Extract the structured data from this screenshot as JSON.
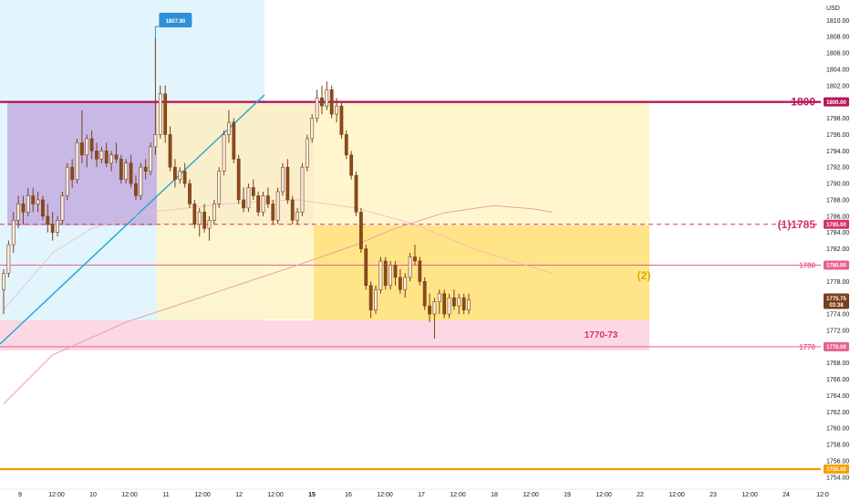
{
  "chart_data": {
    "type": "candlestick",
    "currency": "USD",
    "y_ticks": [
      1754,
      1756,
      1758,
      1760,
      1762,
      1764,
      1766,
      1768,
      1770,
      1772,
      1774,
      1776,
      1778,
      1780,
      1782,
      1784,
      1786,
      1788,
      1790,
      1792,
      1794,
      1796,
      1798,
      1800,
      1802,
      1804,
      1806,
      1808,
      1810
    ],
    "y_tick_labels": [
      "1754.00",
      "1756.00",
      "1758.00",
      "1760.00",
      "1762.00",
      "1764.00",
      "1766.00",
      "1768.00",
      "1770.00",
      "1772.00",
      "1774.00",
      "1776.00",
      "1778.00",
      "1780.00",
      "1782.00",
      "1784.00",
      "1786.00",
      "1788.00",
      "1790.00",
      "1792.00",
      "1794.00",
      "1796.00",
      "1798.00",
      "1800.00",
      "1802.00",
      "1804.00",
      "1806.00",
      "1808.00",
      "1810.00"
    ],
    "ylim": [
      1753.2,
      1811.6
    ],
    "x_ticks": [
      {
        "label": "9",
        "bold": false
      },
      {
        "label": "12:00",
        "bold": false
      },
      {
        "label": "10",
        "bold": false
      },
      {
        "label": "12:00",
        "bold": false
      },
      {
        "label": "11",
        "bold": false
      },
      {
        "label": "12:00",
        "bold": false
      },
      {
        "label": "12",
        "bold": false
      },
      {
        "label": "12:00",
        "bold": false
      },
      {
        "label": "15",
        "bold": true
      },
      {
        "label": "16",
        "bold": false
      },
      {
        "label": "12:00",
        "bold": false
      },
      {
        "label": "17",
        "bold": false
      },
      {
        "label": "12:00",
        "bold": false
      },
      {
        "label": "18",
        "bold": false
      },
      {
        "label": "12:00",
        "bold": false
      },
      {
        "label": "19",
        "bold": false
      },
      {
        "label": "12:00",
        "bold": false
      },
      {
        "label": "22",
        "bold": false
      },
      {
        "label": "12:00",
        "bold": false
      },
      {
        "label": "23",
        "bold": false
      },
      {
        "label": "12:00",
        "bold": false
      },
      {
        "label": "24",
        "bold": false
      },
      {
        "label": "12:0",
        "bold": false
      }
    ],
    "levels": [
      {
        "label": "1800",
        "price": 1800,
        "tag": "1800.00",
        "color": "#b5195c",
        "style": "solid",
        "thick": true
      },
      {
        "label": "(1)1785",
        "price": 1785,
        "tag": "1785.00",
        "color": "#d6336c",
        "style": "dashed",
        "thick": false
      },
      {
        "label": "1780",
        "price": 1780,
        "tag": "1780.00",
        "color": "#e8608c",
        "style": "solid",
        "thick": false
      },
      {
        "label": "1770",
        "price": 1770,
        "tag": "1770.00",
        "color": "#e8608c",
        "style": "solid",
        "thick": false
      },
      {
        "label": "",
        "price": 1755,
        "tag": "1755.00",
        "color": "#f59f00",
        "style": "solid",
        "thick": true
      }
    ],
    "zone_label": "1770-73",
    "target_label": "(2)",
    "high_callout": "1807.90",
    "high_price": 1807.9,
    "current_price": "1775.75",
    "countdown": "03:38",
    "candles": [
      [
        1777.0,
        1779.5,
        1774.0,
        1779.0
      ],
      [
        1779.0,
        1783.0,
        1778.5,
        1782.5
      ],
      [
        1782.5,
        1786.5,
        1781.5,
        1785.5
      ],
      [
        1785.5,
        1788.5,
        1784.5,
        1787.5
      ],
      [
        1787.5,
        1788.5,
        1785.0,
        1786.5
      ],
      [
        1786.5,
        1789.5,
        1786.0,
        1788.5
      ],
      [
        1788.5,
        1789.5,
        1786.5,
        1787.5
      ],
      [
        1787.5,
        1789.0,
        1786.5,
        1788.0
      ],
      [
        1788.0,
        1788.5,
        1785.5,
        1786.0
      ],
      [
        1786.0,
        1787.5,
        1784.0,
        1785.0
      ],
      [
        1785.0,
        1786.5,
        1783.0,
        1784.0
      ],
      [
        1784.0,
        1786.0,
        1783.5,
        1785.5
      ],
      [
        1785.5,
        1789.0,
        1785.0,
        1788.5
      ],
      [
        1788.5,
        1792.5,
        1788.0,
        1792.0
      ],
      [
        1792.0,
        1793.0,
        1789.5,
        1790.5
      ],
      [
        1790.5,
        1795.5,
        1790.0,
        1795.0
      ],
      [
        1795.0,
        1799.0,
        1792.5,
        1793.5
      ],
      [
        1793.5,
        1796.0,
        1792.0,
        1795.5
      ],
      [
        1795.5,
        1796.5,
        1793.0,
        1794.0
      ],
      [
        1794.0,
        1795.0,
        1792.0,
        1793.0
      ],
      [
        1793.0,
        1794.5,
        1792.5,
        1794.0
      ],
      [
        1794.0,
        1795.0,
        1792.0,
        1792.5
      ],
      [
        1792.5,
        1794.0,
        1791.5,
        1793.5
      ],
      [
        1793.5,
        1795.0,
        1792.5,
        1793.0
      ],
      [
        1793.0,
        1793.5,
        1790.0,
        1790.5
      ],
      [
        1790.5,
        1793.0,
        1790.0,
        1792.5
      ],
      [
        1792.5,
        1793.5,
        1789.5,
        1790.0
      ],
      [
        1790.0,
        1791.0,
        1788.0,
        1788.5
      ],
      [
        1788.5,
        1792.5,
        1788.0,
        1792.0
      ],
      [
        1792.0,
        1793.0,
        1790.5,
        1791.5
      ],
      [
        1791.5,
        1795.0,
        1791.0,
        1794.5
      ],
      [
        1794.5,
        1807.9,
        1793.5,
        1796.0
      ],
      [
        1796.0,
        1802.0,
        1795.5,
        1801.0
      ],
      [
        1801.0,
        1802.0,
        1795.0,
        1796.0
      ],
      [
        1796.0,
        1797.0,
        1791.5,
        1792.0
      ],
      [
        1792.0,
        1793.0,
        1789.5,
        1790.5
      ],
      [
        1790.5,
        1792.0,
        1790.0,
        1791.5
      ],
      [
        1791.5,
        1792.5,
        1789.5,
        1790.0
      ],
      [
        1790.0,
        1790.5,
        1787.0,
        1787.5
      ],
      [
        1787.5,
        1788.0,
        1784.5,
        1785.0
      ],
      [
        1785.0,
        1787.0,
        1783.5,
        1786.5
      ],
      [
        1786.5,
        1787.5,
        1784.0,
        1784.5
      ],
      [
        1784.5,
        1786.0,
        1783.0,
        1785.5
      ],
      [
        1785.5,
        1788.0,
        1785.0,
        1787.5
      ],
      [
        1787.5,
        1792.0,
        1787.0,
        1791.5
      ],
      [
        1791.5,
        1796.5,
        1791.0,
        1796.0
      ],
      [
        1796.0,
        1799.0,
        1795.0,
        1797.5
      ],
      [
        1797.5,
        1798.0,
        1792.5,
        1793.0
      ],
      [
        1793.0,
        1793.5,
        1787.5,
        1788.0
      ],
      [
        1788.0,
        1789.5,
        1786.5,
        1787.0
      ],
      [
        1787.0,
        1790.0,
        1786.5,
        1789.5
      ],
      [
        1789.5,
        1790.5,
        1788.0,
        1788.5
      ],
      [
        1788.5,
        1789.0,
        1786.0,
        1786.5
      ],
      [
        1786.5,
        1789.0,
        1786.0,
        1788.5
      ],
      [
        1788.5,
        1789.5,
        1787.0,
        1787.5
      ],
      [
        1787.5,
        1788.0,
        1785.0,
        1785.5
      ],
      [
        1785.5,
        1789.5,
        1785.0,
        1789.0
      ],
      [
        1789.0,
        1792.5,
        1788.5,
        1792.0
      ],
      [
        1792.0,
        1793.0,
        1787.5,
        1788.0
      ],
      [
        1788.0,
        1788.5,
        1785.0,
        1785.5
      ],
      [
        1785.5,
        1787.0,
        1785.0,
        1786.5
      ],
      [
        1786.5,
        1792.5,
        1786.0,
        1792.0
      ],
      [
        1792.0,
        1796.0,
        1791.5,
        1795.5
      ],
      [
        1795.5,
        1798.5,
        1795.0,
        1798.0
      ],
      [
        1798.0,
        1801.5,
        1797.5,
        1800.5
      ],
      [
        1800.5,
        1802.0,
        1798.5,
        1799.5
      ],
      [
        1799.5,
        1802.5,
        1799.0,
        1801.5
      ],
      [
        1801.5,
        1802.0,
        1798.0,
        1798.5
      ],
      [
        1798.5,
        1800.5,
        1797.5,
        1799.5
      ],
      [
        1799.5,
        1800.0,
        1795.5,
        1796.0
      ],
      [
        1796.0,
        1796.5,
        1793.0,
        1793.5
      ],
      [
        1793.5,
        1794.0,
        1790.5,
        1791.0
      ],
      [
        1791.0,
        1791.5,
        1786.0,
        1786.5
      ],
      [
        1786.5,
        1787.0,
        1781.5,
        1782.0
      ],
      [
        1782.0,
        1782.5,
        1777.0,
        1777.5
      ],
      [
        1777.5,
        1778.0,
        1773.5,
        1774.5
      ],
      [
        1774.5,
        1777.5,
        1774.0,
        1777.0
      ],
      [
        1777.0,
        1781.0,
        1776.5,
        1780.5
      ],
      [
        1780.5,
        1781.0,
        1777.0,
        1777.5
      ],
      [
        1777.5,
        1780.5,
        1777.0,
        1780.0
      ],
      [
        1780.0,
        1780.5,
        1777.5,
        1778.5
      ],
      [
        1778.5,
        1779.5,
        1776.5,
        1777.0
      ],
      [
        1777.0,
        1779.0,
        1776.0,
        1778.5
      ],
      [
        1778.5,
        1781.5,
        1778.0,
        1781.0
      ],
      [
        1781.0,
        1782.5,
        1780.0,
        1780.5
      ],
      [
        1780.5,
        1781.0,
        1777.5,
        1778.0
      ],
      [
        1778.0,
        1778.5,
        1774.5,
        1775.0
      ],
      [
        1775.0,
        1776.5,
        1773.0,
        1774.0
      ],
      [
        1774.0,
        1776.0,
        1771.0,
        1775.5
      ],
      [
        1775.5,
        1777.0,
        1774.0,
        1776.5
      ],
      [
        1776.5,
        1777.0,
        1773.5,
        1774.0
      ],
      [
        1774.0,
        1776.5,
        1773.5,
        1776.0
      ],
      [
        1776.0,
        1777.0,
        1774.5,
        1775.0
      ],
      [
        1775.0,
        1776.5,
        1774.0,
        1776.0
      ],
      [
        1776.0,
        1776.5,
        1774.0,
        1774.5
      ],
      [
        1774.5,
        1776.5,
        1774.0,
        1775.75
      ]
    ],
    "ma_slow": [
      [
        0,
        1763
      ],
      [
        10,
        1769
      ],
      [
        25,
        1773
      ],
      [
        45,
        1777
      ],
      [
        60,
        1780
      ],
      [
        72,
        1782.5
      ],
      [
        80,
        1784.5
      ],
      [
        90,
        1786.4
      ],
      [
        100,
        1787.3
      ],
      [
        108,
        1786.9
      ],
      [
        112,
        1786.5
      ]
    ],
    "ma_fast": [
      [
        0,
        1774.5
      ],
      [
        5,
        1778
      ],
      [
        10,
        1781.5
      ],
      [
        18,
        1784.5
      ],
      [
        30,
        1786.5
      ],
      [
        45,
        1787.5
      ],
      [
        60,
        1788
      ],
      [
        72,
        1787
      ],
      [
        84,
        1785
      ],
      [
        96,
        1782
      ],
      [
        112,
        1779
      ]
    ]
  }
}
